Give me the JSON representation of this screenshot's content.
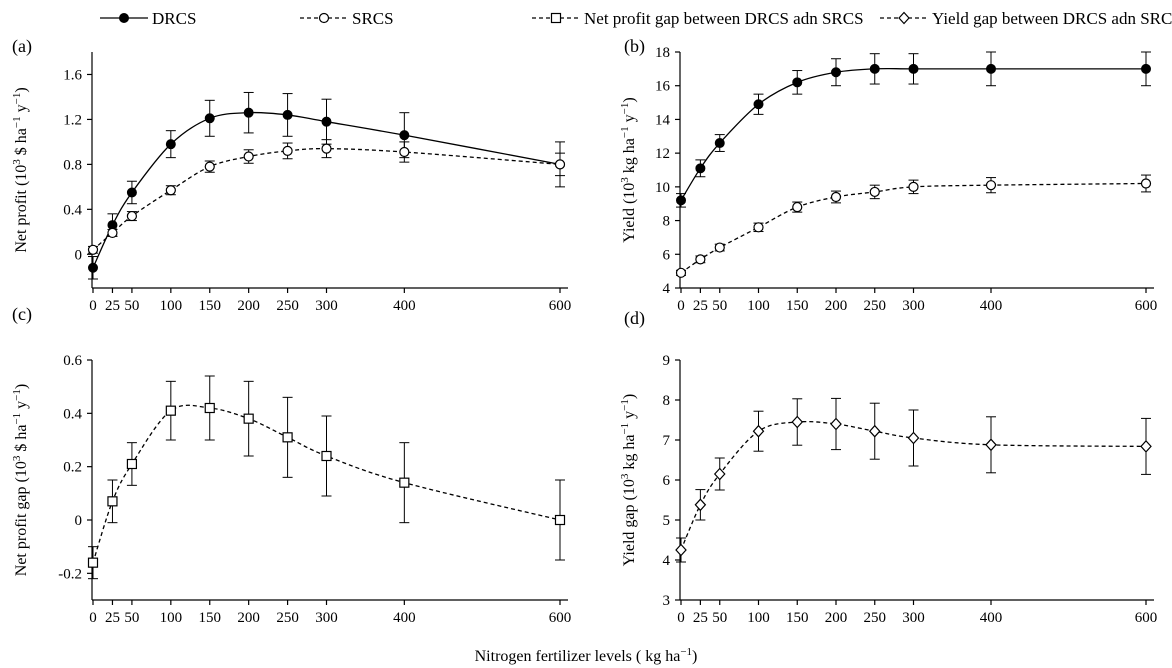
{
  "legend": [
    {
      "label": "DRCS",
      "marker": "filled-circle",
      "dash": "solid"
    },
    {
      "label": "SRCS",
      "marker": "open-circle",
      "dash": "dashed"
    },
    {
      "label": "Net profit gap between DRCS adn SRCS",
      "marker": "open-square",
      "dash": "dashed"
    },
    {
      "label": "Yield gap between DRCS adn SRCS",
      "marker": "open-diamond",
      "dash": "dashed"
    }
  ],
  "common_xlabel": {
    "pre": "Nitrogen fertilizer levels ( kg ha",
    "sup": "−1",
    "post": ")"
  },
  "chart_data": [
    {
      "panel": "(a)",
      "type": "line",
      "ylabel": {
        "pre": "Net profit (10",
        "sup1": "3",
        "mid": " $ ha",
        "sup2": "−1",
        "mid2": " y",
        "sup3": "−1",
        "post": ")"
      },
      "x": [
        0,
        25,
        50,
        100,
        150,
        200,
        250,
        300,
        400,
        600
      ],
      "xticks": [
        "0",
        "25",
        "50",
        "100",
        "150",
        "200",
        "250",
        "300",
        "400",
        "600"
      ],
      "yticks": [
        "0",
        "0.4",
        "0.8",
        "1.2",
        "1.6"
      ],
      "ytick_values": [
        0,
        0.4,
        0.8,
        1.2,
        1.6
      ],
      "ylim": [
        -0.3,
        1.8
      ],
      "series": [
        {
          "name": "DRCS",
          "marker": "filled-circle",
          "dash": "solid",
          "values": [
            -0.12,
            0.26,
            0.55,
            0.98,
            1.21,
            1.26,
            1.24,
            1.18,
            1.06,
            0.8
          ],
          "errors": [
            0.1,
            0.1,
            0.1,
            0.12,
            0.16,
            0.18,
            0.19,
            0.2,
            0.2,
            0.2
          ]
        },
        {
          "name": "SRCS",
          "marker": "open-circle",
          "dash": "dashed",
          "values": [
            0.04,
            0.19,
            0.34,
            0.57,
            0.78,
            0.87,
            0.92,
            0.94,
            0.91,
            0.8
          ],
          "errors": [
            0.03,
            0.03,
            0.04,
            0.04,
            0.05,
            0.06,
            0.07,
            0.08,
            0.09,
            0.1
          ]
        }
      ]
    },
    {
      "panel": "(b)",
      "type": "line",
      "ylabel": {
        "pre": "Yield (10",
        "sup1": "3",
        "mid": " kg ha",
        "sup2": "−1",
        "mid2": " y",
        "sup3": "−1",
        "post": ")"
      },
      "x": [
        0,
        25,
        50,
        100,
        150,
        200,
        250,
        300,
        400,
        600
      ],
      "xticks": [
        "0",
        "25",
        "50",
        "100",
        "150",
        "200",
        "250",
        "300",
        "400",
        "600"
      ],
      "yticks": [
        "4",
        "6",
        "8",
        "10",
        "12",
        "14",
        "16",
        "18"
      ],
      "ytick_values": [
        4,
        6,
        8,
        10,
        12,
        14,
        16,
        18
      ],
      "ylim": [
        4,
        18
      ],
      "series": [
        {
          "name": "DRCS",
          "marker": "filled-circle",
          "dash": "solid",
          "values": [
            9.2,
            11.1,
            12.6,
            14.9,
            16.2,
            16.8,
            17.0,
            17.0,
            17.0,
            17.0
          ],
          "errors": [
            0.4,
            0.5,
            0.5,
            0.6,
            0.7,
            0.8,
            0.9,
            0.9,
            1.0,
            1.0
          ]
        },
        {
          "name": "SRCS",
          "marker": "open-circle",
          "dash": "dashed",
          "values": [
            4.9,
            5.7,
            6.4,
            7.6,
            8.8,
            9.4,
            9.7,
            10.0,
            10.1,
            10.2
          ],
          "errors": [
            0.15,
            0.2,
            0.2,
            0.25,
            0.3,
            0.35,
            0.4,
            0.4,
            0.45,
            0.5
          ]
        }
      ]
    },
    {
      "panel": "(c)",
      "type": "line",
      "ylabel": {
        "pre": "Net profit gap (10",
        "sup1": "3",
        "mid": " $ ha",
        "sup2": "−1",
        "mid2": " y",
        "sup3": "−1",
        "post": ")"
      },
      "x": [
        0,
        25,
        50,
        100,
        150,
        200,
        250,
        300,
        400,
        600
      ],
      "xticks": [
        "0",
        "25",
        "50",
        "100",
        "150",
        "200",
        "250",
        "300",
        "400",
        "600"
      ],
      "yticks": [
        "-0.2",
        "0",
        "0.2",
        "0.4",
        "0.6"
      ],
      "ytick_values": [
        -0.2,
        0,
        0.2,
        0.4,
        0.6
      ],
      "ylim": [
        -0.3,
        0.6
      ],
      "series": [
        {
          "name": "Net profit gap between DRCS adn SRCS",
          "marker": "open-square",
          "dash": "dashed",
          "values": [
            -0.16,
            0.07,
            0.21,
            0.41,
            0.42,
            0.38,
            0.31,
            0.24,
            0.14,
            0.0
          ],
          "errors": [
            0.06,
            0.08,
            0.08,
            0.11,
            0.12,
            0.14,
            0.15,
            0.15,
            0.15,
            0.15
          ]
        }
      ]
    },
    {
      "panel": "(d)",
      "type": "line",
      "ylabel": {
        "pre": "Yield gap (10",
        "sup1": "3",
        "mid": " kg ha",
        "sup2": "−1",
        "mid2": " y",
        "sup3": "−1",
        "post": ")"
      },
      "x": [
        0,
        25,
        50,
        100,
        150,
        200,
        250,
        300,
        400,
        600
      ],
      "xticks": [
        "0",
        "25",
        "50",
        "100",
        "150",
        "200",
        "250",
        "300",
        "400",
        "600"
      ],
      "yticks": [
        "3",
        "4",
        "5",
        "6",
        "7",
        "8",
        "9"
      ],
      "ytick_values": [
        3,
        4,
        5,
        6,
        7,
        8,
        9
      ],
      "ylim": [
        3,
        9
      ],
      "series": [
        {
          "name": "Yield gap between DRCS adn SRCS",
          "marker": "open-diamond",
          "dash": "dashed",
          "values": [
            4.25,
            5.38,
            6.15,
            7.22,
            7.45,
            7.4,
            7.22,
            7.05,
            6.88,
            6.84
          ],
          "errors": [
            0.3,
            0.38,
            0.4,
            0.5,
            0.58,
            0.64,
            0.7,
            0.7,
            0.7,
            0.7
          ]
        }
      ]
    }
  ]
}
